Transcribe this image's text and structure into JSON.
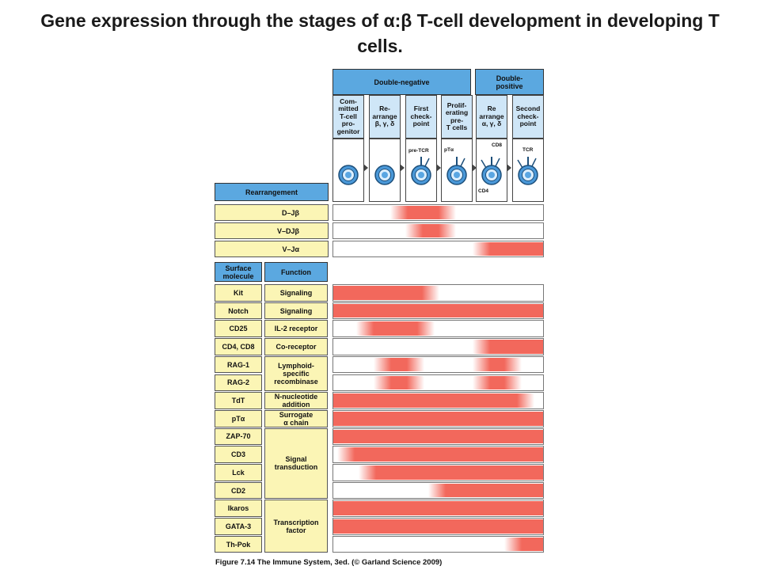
{
  "title": "Gene expression through the stages of α:β T-cell development in developing T cells.",
  "header": {
    "double_negative": "Double-negative",
    "double_positive": "Double-\npositive",
    "stages": [
      "Com-\nmitted\nT-cell\npro-\ngenitor",
      "Re-\narrange\nβ, γ, δ",
      "First\ncheck-\npoint",
      "Prolif-\nerating\npre-\nT cells",
      "Re\narrange\nα, γ, δ",
      "Second\ncheck-\npoint"
    ],
    "cell_labels": {
      "pre_tcr": "pre-TCR",
      "pt_alpha": "pTα",
      "cd8": "CD8",
      "cd4": "CD4",
      "tcr": "TCR"
    }
  },
  "rearrangement": {
    "header": "Rearrangement",
    "rows": [
      {
        "label": "D–Jβ",
        "segments": [
          [
            0.27,
            0.58
          ]
        ]
      },
      {
        "label": "V–DJβ",
        "segments": [
          [
            0.34,
            0.58
          ]
        ]
      },
      {
        "label": "V–Jα",
        "segments": [
          [
            0.66,
            1.0
          ]
        ]
      }
    ]
  },
  "molecules": {
    "surface_header": "Surface\nmolecule",
    "function_header": "Function",
    "function_groups": [
      "Signaling",
      "Signaling",
      "IL-2 receptor",
      "Co-receptor",
      "Lymphoid-\nspecific\nrecombinase",
      "N-nucleotide\naddition",
      "Surrogate\nα chain",
      "Signal\ntransduction",
      "Transcription\nfactor"
    ],
    "rows": [
      {
        "name": "Kit",
        "segments": [
          [
            0.0,
            0.5
          ]
        ]
      },
      {
        "name": "Notch",
        "segments": [
          [
            0.0,
            1.0
          ]
        ]
      },
      {
        "name": "CD25",
        "segments": [
          [
            0.11,
            0.48
          ]
        ]
      },
      {
        "name": "CD4, CD8",
        "segments": [
          [
            0.66,
            1.0
          ]
        ]
      },
      {
        "name": "RAG-1",
        "segments": [
          [
            0.19,
            0.43
          ],
          [
            0.66,
            0.89
          ]
        ]
      },
      {
        "name": "RAG-2",
        "segments": [
          [
            0.19,
            0.43
          ],
          [
            0.66,
            0.89
          ]
        ]
      },
      {
        "name": "TdT",
        "segments": [
          [
            0.0,
            0.95
          ]
        ]
      },
      {
        "name": "pTα",
        "segments": [
          [
            0.0,
            1.0
          ]
        ]
      },
      {
        "name": "ZAP-70",
        "segments": [
          [
            0.0,
            1.0
          ]
        ]
      },
      {
        "name": "CD3",
        "segments": [
          [
            0.02,
            1.0
          ]
        ]
      },
      {
        "name": "Lck",
        "segments": [
          [
            0.12,
            1.0
          ]
        ]
      },
      {
        "name": "CD2",
        "segments": [
          [
            0.45,
            1.0
          ]
        ]
      },
      {
        "name": "Ikaros",
        "segments": [
          [
            0.0,
            1.0
          ]
        ]
      },
      {
        "name": "GATA-3",
        "segments": [
          [
            0.0,
            1.0
          ]
        ]
      },
      {
        "name": "Th-Pok",
        "segments": [
          [
            0.81,
            1.0
          ]
        ]
      }
    ]
  },
  "colors": {
    "bar": "#f2685c",
    "blue": "#5ba8e0",
    "yellow": "#fbf5b5",
    "stage": "#cfe6f7"
  },
  "caption": "Figure 7.14 The Immune System, 3ed. (© Garland Science 2009)"
}
